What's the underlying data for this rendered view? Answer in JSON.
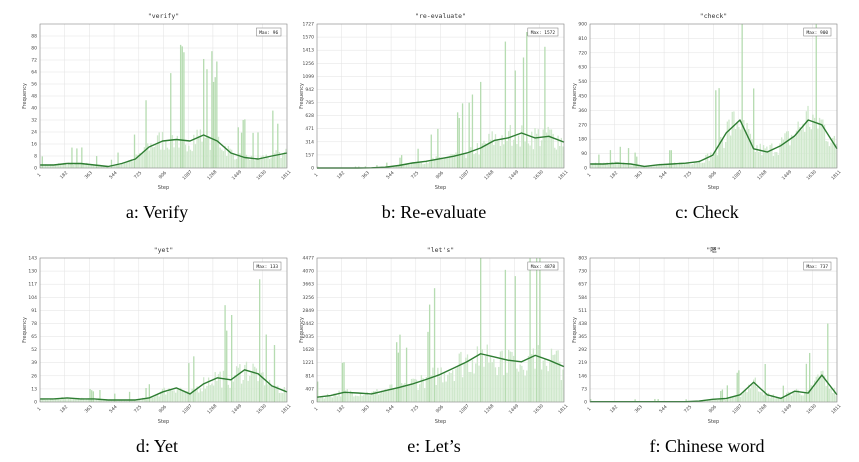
{
  "colors": {
    "bar": "#cfe8cc",
    "spike": "#b6dcb1",
    "line": "#2e7d32",
    "grid": "#e2e2e2",
    "axis": "#888888"
  },
  "captions": [
    "a: Verify",
    "b: Re-evaluate",
    "c: Check",
    "d: Yet",
    "e: Let’s",
    "f: Chinese word"
  ],
  "chart_data": [
    {
      "type": "area",
      "title": "\"verify\"",
      "xlabel": "Step",
      "ylabel": "Frequency",
      "max_label": "Max: 96",
      "grid": true,
      "x_ticks": [
        "1",
        "182",
        "363",
        "544",
        "725",
        "906",
        "1087",
        "1268",
        "1449",
        "1630",
        "1811"
      ],
      "y_ticks": [
        "0",
        "8",
        "16",
        "24",
        "32",
        "40",
        "48",
        "56",
        "64",
        "72",
        "80",
        "88"
      ],
      "ylim": [
        0,
        96
      ],
      "xlim": [
        1,
        1811
      ],
      "smooth": {
        "x": [
          1,
          100,
          200,
          300,
          400,
          500,
          600,
          700,
          800,
          900,
          1000,
          1100,
          1200,
          1300,
          1400,
          1500,
          1600,
          1700,
          1811
        ],
        "y": [
          2,
          2,
          3,
          3,
          2,
          1,
          3,
          6,
          14,
          18,
          19,
          18,
          22,
          18,
          10,
          7,
          6,
          8,
          10
        ]
      }
    },
    {
      "type": "area",
      "title": "\"re-evaluate\"",
      "xlabel": "Step",
      "ylabel": "Frequency",
      "max_label": "Max: 1572",
      "grid": true,
      "x_ticks": [
        "1",
        "182",
        "363",
        "544",
        "725",
        "906",
        "1087",
        "1268",
        "1449",
        "1630",
        "1811"
      ],
      "y_ticks": [
        "0",
        "157",
        "314",
        "471",
        "628",
        "785",
        "942",
        "1099",
        "1256",
        "1413",
        "1570",
        "1727"
      ],
      "ylim": [
        0,
        1727
      ],
      "xlim": [
        1,
        1811
      ],
      "smooth": {
        "x": [
          1,
          100,
          200,
          300,
          400,
          500,
          600,
          700,
          800,
          900,
          1000,
          1100,
          1200,
          1300,
          1400,
          1500,
          1600,
          1700,
          1811
        ],
        "y": [
          0,
          0,
          0,
          0,
          2,
          10,
          30,
          60,
          80,
          110,
          140,
          180,
          240,
          330,
          360,
          420,
          360,
          380,
          310
        ]
      }
    },
    {
      "type": "area",
      "title": "\"check\"",
      "xlabel": "Step",
      "ylabel": "Frequency",
      "max_label": "Max: 900",
      "grid": true,
      "x_ticks": [
        "1",
        "182",
        "363",
        "544",
        "725",
        "906",
        "1087",
        "1268",
        "1449",
        "1630",
        "1811"
      ],
      "y_ticks": [
        "0",
        "90",
        "180",
        "270",
        "360",
        "450",
        "540",
        "630",
        "720",
        "810",
        "900"
      ],
      "ylim": [
        0,
        900
      ],
      "xlim": [
        1,
        1811
      ],
      "smooth": {
        "x": [
          1,
          100,
          200,
          300,
          400,
          500,
          600,
          700,
          800,
          900,
          1000,
          1100,
          1200,
          1300,
          1400,
          1500,
          1600,
          1700,
          1811
        ],
        "y": [
          25,
          25,
          30,
          25,
          10,
          20,
          25,
          30,
          40,
          80,
          220,
          300,
          120,
          100,
          140,
          200,
          300,
          270,
          120
        ]
      }
    },
    {
      "type": "area",
      "title": "\"yet\"",
      "xlabel": "Step",
      "ylabel": "Frequency",
      "max_label": "Max: 133",
      "grid": true,
      "x_ticks": [
        "1",
        "182",
        "363",
        "544",
        "725",
        "906",
        "1087",
        "1268",
        "1449",
        "1630",
        "1811"
      ],
      "y_ticks": [
        "0",
        "13",
        "26",
        "39",
        "52",
        "65",
        "78",
        "91",
        "104",
        "117",
        "130",
        "143"
      ],
      "ylim": [
        0,
        143
      ],
      "xlim": [
        1,
        1811
      ],
      "smooth": {
        "x": [
          1,
          100,
          200,
          300,
          400,
          500,
          600,
          700,
          800,
          900,
          1000,
          1100,
          1200,
          1300,
          1400,
          1500,
          1600,
          1700,
          1811
        ],
        "y": [
          3,
          3,
          4,
          3,
          3,
          2,
          2,
          2,
          4,
          10,
          14,
          8,
          18,
          24,
          22,
          32,
          28,
          16,
          10
        ]
      }
    },
    {
      "type": "area",
      "title": "\"let's\"",
      "xlabel": "Step",
      "ylabel": "Frequency",
      "max_label": "Max: 4878",
      "grid": true,
      "x_ticks": [
        "1",
        "182",
        "363",
        "544",
        "725",
        "906",
        "1087",
        "1268",
        "1449",
        "1630",
        "1811"
      ],
      "y_ticks": [
        "0",
        "407",
        "814",
        "1221",
        "1628",
        "2035",
        "2442",
        "2849",
        "3256",
        "3663",
        "4070",
        "4477"
      ],
      "ylim": [
        0,
        4477
      ],
      "xlim": [
        1,
        1811
      ],
      "smooth": {
        "x": [
          1,
          100,
          200,
          300,
          400,
          500,
          600,
          700,
          800,
          900,
          1000,
          1100,
          1200,
          1300,
          1400,
          1500,
          1600,
          1700,
          1811
        ],
        "y": [
          150,
          200,
          300,
          280,
          250,
          350,
          450,
          560,
          700,
          850,
          1050,
          1250,
          1500,
          1400,
          1300,
          1250,
          1450,
          1300,
          1100
        ]
      }
    },
    {
      "type": "area",
      "title": "\"嗯\"",
      "xlabel": "Step",
      "ylabel": "Frequency",
      "max_label": "Max: 737",
      "grid": true,
      "x_ticks": [
        "1",
        "182",
        "363",
        "544",
        "725",
        "906",
        "1087",
        "1268",
        "1449",
        "1630",
        "1811"
      ],
      "y_ticks": [
        "0",
        "73",
        "146",
        "219",
        "292",
        "365",
        "438",
        "511",
        "584",
        "657",
        "730",
        "803"
      ],
      "ylim": [
        0,
        803
      ],
      "xlim": [
        1,
        1811
      ],
      "smooth": {
        "x": [
          1,
          100,
          200,
          300,
          400,
          500,
          600,
          700,
          800,
          900,
          1000,
          1100,
          1200,
          1300,
          1400,
          1500,
          1600,
          1700,
          1811
        ],
        "y": [
          2,
          2,
          2,
          2,
          2,
          2,
          2,
          2,
          5,
          15,
          20,
          40,
          110,
          40,
          20,
          60,
          50,
          150,
          40
        ]
      }
    }
  ]
}
